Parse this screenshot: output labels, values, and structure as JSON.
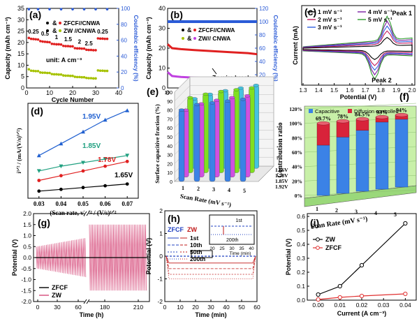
{
  "colors": {
    "zfcf": "#e02020",
    "zw": "#a6c200",
    "ce": "#2b5bd7",
    "blue_line": "#2040c0",
    "bar_blue": "#3b82e6",
    "bar_red": "#d8233a",
    "bar_green": "#80e020",
    "bar_magenta": "#d050e0",
    "bar_cyan": "#45c3e0",
    "panel_f_bg": "#c8f0a8",
    "panel_g_curve": "#d64a7a",
    "panel_h_trace": "#c01818",
    "panel_i_zw": "#000000",
    "panel_i_zfcf": "#e03030"
  },
  "panels": {
    "a": {
      "label": "(a)",
      "ylabel": "Capacity (mAh cm⁻³)",
      "y2label": "Coulombic efficiency (%)",
      "xlabel": "Cycle Number",
      "legend": [
        "ZFCF//CNWA",
        "ZW //CNWA"
      ],
      "legend_sym": "&",
      "rate_labels": [
        "0.25",
        "0.5",
        "1",
        "1.5",
        "2",
        "2.5",
        "0.25"
      ],
      "unit_note": "unit: A cm⁻³",
      "xticks": [
        "0",
        "10",
        "20",
        "30",
        "40"
      ],
      "yticks": [
        "0",
        "5",
        "10",
        "15",
        "20",
        "25",
        "30",
        "35"
      ],
      "y2ticks": [
        "0",
        "20",
        "40",
        "60",
        "80",
        "100"
      ]
    },
    "b": {
      "label": "(b)",
      "ylabel": "Capacity (mAh cm⁻³)",
      "y2label": "Coulombic efficiency (%)",
      "xlabel": "Cycle Number",
      "legend": [
        "ZFCF//CNWA",
        "ZW// CNWA"
      ],
      "legend_sym": "&",
      "annotation": "Zn wire break",
      "xticks": [
        "0",
        "500",
        "1000",
        "1500",
        "2000"
      ],
      "yticks": [
        "0",
        "10",
        "20",
        "30",
        "40"
      ],
      "y2ticks": [
        "0",
        "20",
        "40",
        "60",
        "80",
        "100",
        "120"
      ]
    },
    "c": {
      "label": "(c)",
      "ylabel": "Current (mA)",
      "xlabel": "Potential (V)",
      "legend": [
        "1 mV s⁻¹",
        "2 mV s⁻¹",
        "3 mV s⁻¹",
        "4 mV s⁻¹",
        "5 mV s⁻¹"
      ],
      "peak1": "Peak 1",
      "peak2": "Peak 2",
      "xticks": [
        "1.3",
        "1.4",
        "1.5",
        "1.6",
        "1.7",
        "1.8",
        "1.9",
        "2.0"
      ]
    },
    "d": {
      "label": "(d)",
      "ylabel": "i¹ᐟ² / (mA/(V/s)¹ᐟ²)",
      "xlabel": "(Scan rate, v)¹ᐟ² / (V/s)¹ᐟ²",
      "xticks": [
        "0.03",
        "0.04",
        "0.05",
        "0.06",
        "0.07"
      ],
      "series_labels": [
        "1.95V",
        "1.85V",
        "1.78V",
        "1.65V"
      ]
    },
    "e": {
      "label": "(e)",
      "ylabel": "Surface capacitive fraction (%)",
      "xlabel": "Scan Rate (mV s⁻¹)",
      "yticks": [
        "0",
        "10",
        "20",
        "30",
        "40",
        "50",
        "60",
        "70",
        "80",
        "90",
        "100"
      ],
      "xticks": [
        "1",
        "2",
        "3",
        "4",
        "5"
      ],
      "depth_labels": [
        "1.66V",
        "1.78V",
        "1.85V",
        "1.92V"
      ]
    },
    "f": {
      "label": "(f)",
      "ylabel": "Contribution ratio",
      "xlabel": "Scan Rate (mV s⁻¹)",
      "legend": [
        "Capacitive",
        "Diffusion controlled"
      ],
      "yticks": [
        "0%",
        "20%",
        "40%",
        "60%",
        "80%",
        "100%",
        "120%"
      ],
      "xticks": [
        "1",
        "2",
        "3",
        "4",
        "5"
      ],
      "pct_labels": [
        "69.7%",
        "78%",
        "84.5%",
        "93%",
        "94%"
      ]
    },
    "g": {
      "label": "(g)",
      "ylabel": "Potential (V)",
      "xlabel": "Time (h)",
      "legend": [
        "ZFCF",
        "ZW"
      ],
      "xticks": [
        "0",
        "30",
        "60",
        "180",
        "210"
      ],
      "yticks": [
        "-2.0",
        "-1.5",
        "-1.0",
        "-0.5",
        "0.0",
        "0.5",
        "1.0",
        "1.5",
        "2.0"
      ]
    },
    "h": {
      "label": "(h)",
      "ylabel": "Potential (V)",
      "xlabel": "Time (min)",
      "legend_head": [
        "ZFCF",
        "ZW"
      ],
      "legend": [
        "1st",
        "10th",
        "50th",
        "200th"
      ],
      "inset_ylabel": "Potential (V)",
      "inset_xlabel": "Time (min)",
      "inset_label_1st": "1st",
      "inset_label_200th": "200th",
      "inset_xticks": [
        "20",
        "25",
        "30",
        "35",
        "40"
      ],
      "inset_yticks": [
        "0.00",
        "-0.05",
        "-0.10"
      ],
      "xticks": [
        "0",
        "10",
        "20",
        "30",
        "40",
        "50",
        "60"
      ],
      "yticks": [
        "-2",
        "-1",
        "0",
        "1",
        "2"
      ]
    },
    "i": {
      "label": "(i)",
      "ylabel": "Potential (V)",
      "xlabel": "Current (A cm⁻³)",
      "legend": [
        "ZW",
        "ZFCF"
      ],
      "xticks": [
        "0.00",
        "0.01",
        "0.02",
        "0.03",
        "0.04"
      ],
      "yticks": [
        "0.0",
        "0.1",
        "0.2",
        "0.3",
        "0.4",
        "0.5",
        "0.6"
      ]
    }
  },
  "chart_data": [
    {
      "panel": "a",
      "type": "scatter",
      "x_range": [
        0,
        40
      ],
      "y_range": [
        0,
        35
      ],
      "y2_range": [
        0,
        100
      ],
      "series": [
        {
          "name": "ZFCF//CNWA",
          "x": [
            1,
            2,
            3,
            4,
            5,
            6,
            7,
            8,
            9,
            10,
            11,
            12,
            13,
            14,
            15,
            16,
            17,
            18,
            19,
            20,
            21,
            22,
            23,
            24,
            25,
            26,
            27,
            28,
            29,
            30,
            31,
            32,
            33,
            34,
            35
          ],
          "values": [
            22,
            21.6,
            21.5,
            21.4,
            21.3,
            20.6,
            20.4,
            20.3,
            20.2,
            20.1,
            19.4,
            19.3,
            19.2,
            19.2,
            19.1,
            18.5,
            18.4,
            18.4,
            18.3,
            18.3,
            17.5,
            17.4,
            17.4,
            17.3,
            17.3,
            16.8,
            16.7,
            16.7,
            16.6,
            16.6,
            21.8,
            21.7,
            21.7,
            21.6,
            21.6
          ]
        },
        {
          "name": "ZW //CNWA",
          "x": [
            1,
            2,
            3,
            4,
            5,
            6,
            7,
            8,
            9,
            10,
            11,
            12,
            13,
            14,
            15,
            16,
            17,
            18,
            19,
            20,
            21,
            22,
            23,
            24,
            25,
            26,
            27,
            28,
            29,
            30,
            31,
            32,
            33,
            34,
            35
          ],
          "values": [
            8.2,
            7.6,
            7.5,
            7.4,
            7.4,
            6.8,
            6.7,
            6.7,
            6.6,
            6.6,
            6.1,
            6,
            6,
            5.9,
            5.9,
            5.5,
            5.4,
            5.4,
            5.3,
            5.3,
            4.9,
            4.8,
            4.8,
            4.7,
            4.7,
            4.4,
            4.3,
            4.3,
            4.2,
            4.2,
            7.7,
            7.6,
            7.6,
            7.5,
            7.5
          ]
        },
        {
          "name": "Coulombic efficiency",
          "axis": "y2",
          "x": [
            1,
            5,
            10,
            15,
            20,
            25,
            30,
            35
          ],
          "values": [
            99,
            99,
            99,
            99,
            99,
            99,
            99,
            99
          ]
        }
      ]
    },
    {
      "panel": "b",
      "type": "line",
      "x_range": [
        0,
        2000
      ],
      "y_range": [
        0,
        40
      ],
      "y2_range": [
        0,
        120
      ],
      "series": [
        {
          "name": "ZFCF//CNWA",
          "x": [
            0,
            100,
            300,
            600,
            1000,
            1400,
            1800,
            2000
          ],
          "values": [
            22,
            20,
            19.5,
            19,
            18.5,
            18,
            17.5,
            17
          ]
        },
        {
          "name": "ZW// CNWA",
          "x": [
            0,
            100,
            300,
            600,
            900,
            1000
          ],
          "values": [
            8,
            6,
            5.5,
            5.2,
            5,
            5
          ]
        },
        {
          "name": "Coulombic efficiency",
          "axis": "y2",
          "x": [
            0,
            500,
            1000,
            1500,
            2000
          ],
          "values": [
            100,
            100,
            100,
            100,
            100
          ]
        }
      ]
    },
    {
      "panel": "c",
      "type": "line",
      "x_range": [
        1.3,
        2.0
      ],
      "series": [
        {
          "name": "1 mV s⁻¹",
          "scale": 0.35
        },
        {
          "name": "2 mV s⁻¹",
          "scale": 0.55
        },
        {
          "name": "3 mV s⁻¹",
          "scale": 0.7
        },
        {
          "name": "4 mV s⁻¹",
          "scale": 0.85
        },
        {
          "name": "5 mV s⁻¹",
          "scale": 1.0
        }
      ]
    },
    {
      "panel": "d",
      "type": "scatter",
      "x": [
        0.03,
        0.04,
        0.05,
        0.06,
        0.07
      ],
      "x_range": [
        0.025,
        0.075
      ],
      "y_range": [
        0,
        8
      ],
      "series": [
        {
          "name": "1.95V",
          "values": [
            3.6,
            4.6,
            5.6,
            6.6,
            7.4
          ]
        },
        {
          "name": "1.85V",
          "values": [
            2.3,
            2.7,
            3.0,
            3.3,
            3.6
          ]
        },
        {
          "name": "1.78V",
          "values": [
            1.5,
            1.9,
            2.3,
            2.7,
            3.1
          ]
        },
        {
          "name": "1.65V",
          "values": [
            0.6,
            0.75,
            0.9,
            1.05,
            1.2
          ]
        }
      ]
    },
    {
      "panel": "e",
      "type": "bar",
      "categories": [
        "1",
        "2",
        "3",
        "4",
        "5"
      ],
      "y_range": [
        0,
        100
      ],
      "series": [
        {
          "name": "1.66V",
          "values": [
            80,
            86,
            88,
            90,
            92
          ]
        },
        {
          "name": "1.78V",
          "values": [
            75,
            82,
            86,
            89,
            91
          ]
        },
        {
          "name": "1.85V",
          "values": [
            84,
            88,
            91,
            93,
            95
          ]
        },
        {
          "name": "1.92V",
          "values": [
            78,
            83,
            87,
            90,
            93
          ]
        }
      ]
    },
    {
      "panel": "f",
      "type": "bar",
      "categories": [
        "1",
        "2",
        "3",
        "4",
        "5"
      ],
      "y_range": [
        0,
        120
      ],
      "series": [
        {
          "name": "Capacitive",
          "values": [
            69.7,
            78,
            84.5,
            93,
            94
          ]
        },
        {
          "name": "Diffusion controlled",
          "values": [
            30.3,
            22,
            15.5,
            7,
            6
          ]
        }
      ]
    },
    {
      "panel": "g",
      "type": "line",
      "y_range": [
        -2,
        2
      ],
      "series": [
        {
          "name": "ZFCF",
          "amplitude": 0.05
        },
        {
          "name": "ZW",
          "amplitude_start": 0.5,
          "amplitude_end": 1.5
        }
      ]
    },
    {
      "panel": "h",
      "type": "line",
      "x_range": [
        0,
        60
      ],
      "y_range": [
        -2,
        2
      ],
      "series": [
        {
          "name": "ZFCF 1st",
          "values": [
            0.0
          ]
        },
        {
          "name": "ZW 1st",
          "values": [
            -0.02
          ]
        },
        {
          "name": "ZW 10th",
          "values": [
            -0.05
          ]
        },
        {
          "name": "ZW 50th",
          "values": [
            -0.08
          ]
        },
        {
          "name": "ZW 200th",
          "values": [
            -0.1
          ]
        }
      ]
    },
    {
      "panel": "i",
      "type": "line",
      "x": [
        0.0,
        0.01,
        0.02,
        0.04
      ],
      "x_range": [
        -0.005,
        0.045
      ],
      "y_range": [
        0,
        0.6
      ],
      "series": [
        {
          "name": "ZW",
          "values": [
            0.04,
            0.1,
            0.25,
            0.55
          ]
        },
        {
          "name": "ZFCF",
          "values": [
            0.005,
            0.02,
            0.03,
            0.045
          ]
        }
      ]
    }
  ]
}
